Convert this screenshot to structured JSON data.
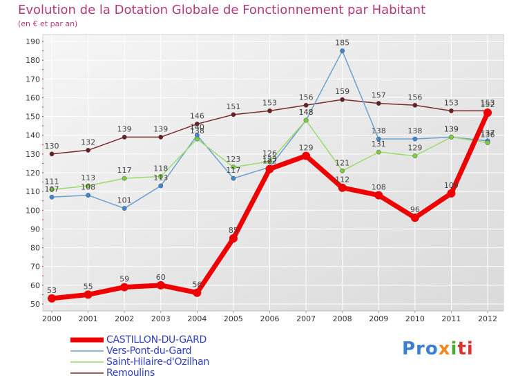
{
  "chart_data": {
    "type": "line",
    "title": "Evolution de la Dotation Globale de Fonctionnement par Habitant",
    "subtitle": "(en € et par an)",
    "xlabel": "",
    "ylabel": "",
    "ylim": [
      50,
      190
    ],
    "yticks": [
      50,
      60,
      70,
      80,
      90,
      100,
      110,
      120,
      130,
      140,
      150,
      160,
      170,
      180,
      190
    ],
    "categories": [
      "2000",
      "2001",
      "2002",
      "2003",
      "2004",
      "2005",
      "2006",
      "2007",
      "2008",
      "2009",
      "2010",
      "2011",
      "2012"
    ],
    "series": [
      {
        "name": "Remoulins",
        "color": "#7a2a2a",
        "marker": "#6b1f25",
        "values": [
          130,
          132,
          139,
          139,
          146,
          151,
          153,
          156,
          159,
          157,
          156,
          153,
          153
        ]
      },
      {
        "name": "Vers-Pont-du-Gard",
        "color": "#6aa0d0",
        "marker": "#3d86d0",
        "values": [
          107,
          108,
          101,
          113,
          140,
          117,
          123,
          148,
          185,
          138,
          138,
          139,
          137
        ]
      },
      {
        "name": "Saint-Hilaire-d'Ozilhan",
        "color": "#9adb6a",
        "marker": "#7acc40",
        "values": [
          111,
          113,
          117,
          118,
          138,
          123,
          126,
          148,
          121,
          131,
          129,
          139,
          136
        ]
      },
      {
        "name": "CASTILLON-DU-GARD",
        "color": "#ee0000",
        "marker": "#ee0000",
        "values": [
          53,
          55,
          59,
          60,
          56,
          85,
          122,
          129,
          112,
          108,
          96,
          109,
          152
        ]
      }
    ],
    "legend": [
      "CASTILLON-DU-GARD",
      "Vers-Pont-du-Gard",
      "Saint-Hilaire-d'Ozilhan",
      "Remoulins"
    ]
  },
  "logo": {
    "p1": "Pro",
    "p2": "x",
    "p3": "i",
    "p4": "ti"
  }
}
